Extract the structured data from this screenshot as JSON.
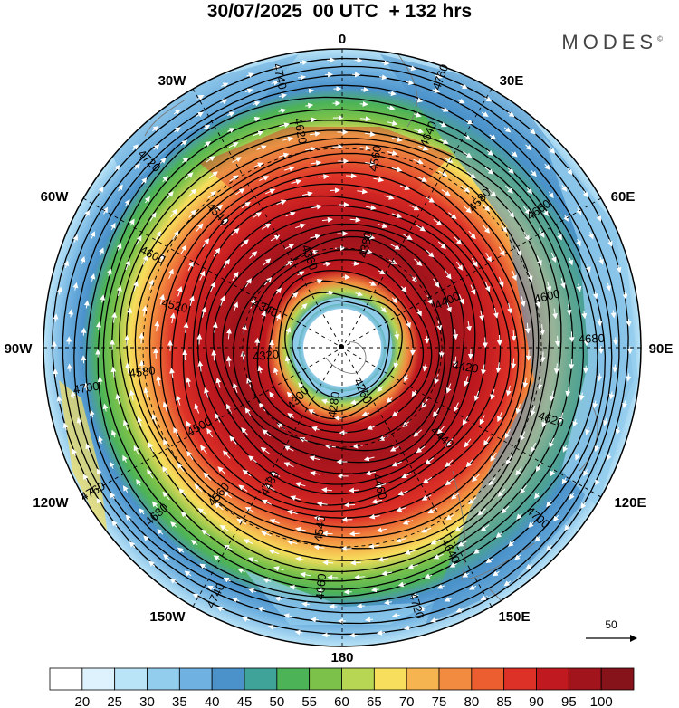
{
  "title": "30/07/2025  00 UTC  + 132 hrs",
  "brand": "MODES",
  "brand_mark": "©",
  "longitude_labels": {
    "lon_0": "0",
    "lon_30w": "30W",
    "lon_30e": "30E",
    "lon_60w": "60W",
    "lon_60e": "60E",
    "lon_90w": "90W",
    "lon_90e": "90E",
    "lon_120w": "120W",
    "lon_120e": "120E",
    "lon_150w": "150W",
    "lon_150e": "150E",
    "lon_180": "180"
  },
  "contour_labels": [
    "4760",
    "4740",
    "4720",
    "4700",
    "4680",
    "4660",
    "4640",
    "4620",
    "4600",
    "4580",
    "4560",
    "4540",
    "4520",
    "4500",
    "4480",
    "4460",
    "4440",
    "4420",
    "4400",
    "4380",
    "4360",
    "4340",
    "4320",
    "4300",
    "4280",
    "4260"
  ],
  "vector_reference": {
    "label": "50"
  },
  "colorbar": {
    "ticks": [
      "20",
      "25",
      "30",
      "35",
      "40",
      "45",
      "50",
      "55",
      "60",
      "65",
      "70",
      "75",
      "80",
      "85",
      "90",
      "95",
      "100"
    ],
    "colors": [
      "#ffffff",
      "#ddf2fc",
      "#b9e3f7",
      "#93cdee",
      "#6fb1e0",
      "#4b92cb",
      "#3fa39a",
      "#4cb357",
      "#7cc24a",
      "#b7d653",
      "#f7de5c",
      "#f6b450",
      "#f28b3f",
      "#ec5e30",
      "#dd3127",
      "#c0191f",
      "#a1141c",
      "#86131a"
    ]
  },
  "colors": {
    "coast": "#777777",
    "grid": "#000000",
    "contour": "#000000",
    "vector": "#ffffff"
  }
}
